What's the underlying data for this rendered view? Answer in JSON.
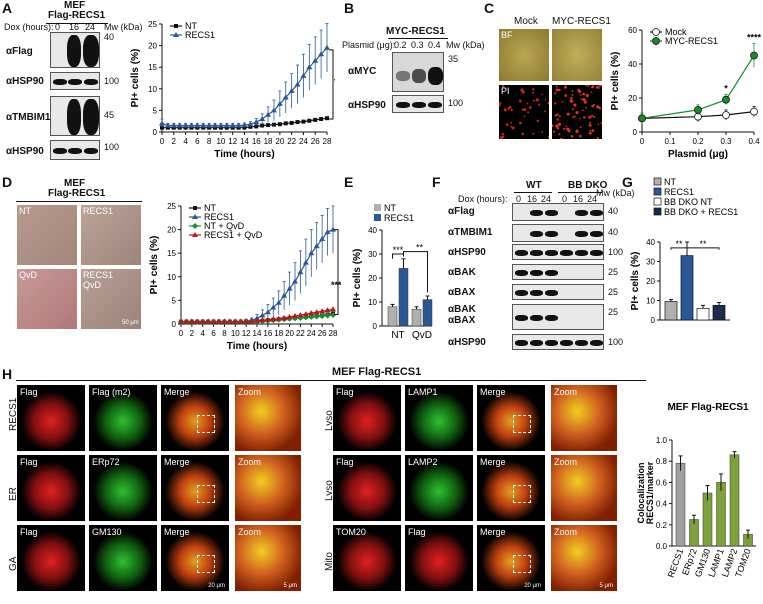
{
  "panel_letters": [
    "A",
    "B",
    "C",
    "D",
    "E",
    "F",
    "G",
    "H"
  ],
  "A": {
    "cell_title_1": "MEF",
    "cell_title_2": "Flag-RECS1",
    "dox_label": "Dox (hours):",
    "dox_times": [
      "0",
      "16",
      "24"
    ],
    "mw_label": "Mw (kDa)",
    "rows": [
      {
        "label": "αFlag",
        "mw": "40"
      },
      {
        "label": "αHSP90",
        "mw": "100"
      },
      {
        "label": "αTMBIM1",
        "mw": "45"
      },
      {
        "label": "αHSP90",
        "mw": "100"
      }
    ]
  },
  "B": {
    "title": "MYC-RECS1",
    "plasmid_label": "Plasmid (μg):",
    "plasmid_values": [
      "0.2",
      "0.3",
      "0.4"
    ],
    "mw_label": "Mw (kDa)",
    "rows": [
      {
        "label": "αMYC",
        "mw": "35"
      },
      {
        "label": "αHSP90",
        "mw": "100"
      }
    ]
  },
  "C": {
    "col_labels": [
      "Mock",
      "MYC-RECS1"
    ],
    "row_labels": [
      "BF",
      "PI"
    ]
  },
  "D": {
    "cell_title_1": "MEF",
    "cell_title_2": "Flag-RECS1",
    "tiles": [
      "NT",
      "RECS1",
      "QvD",
      "RECS1\nQvD"
    ],
    "scale": "50 μm"
  },
  "F": {
    "groups": [
      "WT",
      "BB DKO"
    ],
    "dox_label": "Dox (hours):",
    "dox_times": [
      "0",
      "16",
      "24",
      "0",
      "16",
      "24"
    ],
    "mw_label": "Mw (kDa)",
    "rows": [
      {
        "label": "αFlag",
        "mw": "40"
      },
      {
        "label": "αTMBIM1",
        "mw": "40"
      },
      {
        "label": "αHSP90",
        "mw": "100"
      },
      {
        "label": "αBAK",
        "mw": "25"
      },
      {
        "label": "αBAX",
        "mw": "25"
      },
      {
        "label": "αBAK\nαBAX",
        "mw": "25"
      },
      {
        "label": "αHSP90",
        "mw": "100"
      }
    ]
  },
  "H": {
    "title": "MEF Flag-RECS1",
    "left_rows": [
      {
        "side": "RECS1",
        "labels": [
          "Flag",
          "Flag (m2)",
          "Merge",
          "Zoom"
        ]
      },
      {
        "side": "ER",
        "labels": [
          "Flag",
          "ERp72",
          "Merge",
          "Zoom"
        ]
      },
      {
        "side": "GA",
        "labels": [
          "Flag",
          "GM130",
          "Merge",
          "Zoom"
        ]
      }
    ],
    "right_rows": [
      {
        "side": "Lyso",
        "labels": [
          "Flag",
          "LAMP1",
          "Merge",
          "Zoom"
        ]
      },
      {
        "side": "Lyso",
        "labels": [
          "Flag",
          "LAMP2",
          "Merge",
          "Zoom"
        ]
      },
      {
        "side": "Mito",
        "labels": [
          "TOM20",
          "Flag",
          "Merge",
          "Zoom"
        ]
      }
    ],
    "scale_20": "20 μm",
    "scale_5": "5 μm"
  },
  "chart_data": [
    {
      "panel": "A",
      "type": "line",
      "xlabel": "Time (hours)",
      "ylabel": "PI+ cells (%)",
      "xlim": [
        0,
        28
      ],
      "ylim": [
        0,
        25
      ],
      "xticks": [
        0,
        2,
        4,
        6,
        8,
        10,
        12,
        14,
        16,
        18,
        20,
        22,
        24,
        26,
        28
      ],
      "yticks": [
        0,
        5,
        10,
        15,
        20,
        25
      ],
      "x": [
        0,
        1,
        2,
        3,
        4,
        5,
        6,
        7,
        8,
        9,
        10,
        11,
        12,
        13,
        14,
        15,
        16,
        17,
        18,
        19,
        20,
        21,
        22,
        23,
        24,
        25,
        26,
        27,
        28
      ],
      "series": [
        {
          "name": "NT",
          "color": "#111111",
          "values": [
            1,
            1,
            1,
            1,
            1,
            1,
            1,
            1,
            1,
            1,
            1,
            1,
            1,
            1,
            1,
            1.2,
            1.3,
            1.5,
            1.6,
            1.7,
            1.8,
            2,
            2.1,
            2.3,
            2.4,
            2.6,
            2.8,
            3,
            3.2
          ]
        },
        {
          "name": "RECS1",
          "color": "#2b5797",
          "values": [
            2,
            1.5,
            1.5,
            1.5,
            1.5,
            1.5,
            1.5,
            1.5,
            1.5,
            1.5,
            1.5,
            1.5,
            1.5,
            1.5,
            1.6,
            1.8,
            2.3,
            3,
            4,
            5,
            6.5,
            8,
            9.5,
            11,
            13,
            15,
            16.5,
            18,
            19.5
          ],
          "err": [
            1,
            0.5,
            0.5,
            0.5,
            0.5,
            0.5,
            0.5,
            0.5,
            0.5,
            0.5,
            0.5,
            0.5,
            0.5,
            0.5,
            0.5,
            0.6,
            0.8,
            1.2,
            1.8,
            2.4,
            3,
            3.6,
            4,
            4.5,
            5,
            5.3,
            5.5,
            5.6,
            5.6
          ]
        }
      ],
      "annotation": "****",
      "legend": "top-left"
    },
    {
      "panel": "C",
      "type": "line",
      "xlabel": "Plasmid (μg)",
      "ylabel": "PI+ cells (%)",
      "xlim": [
        0,
        0.4
      ],
      "ylim": [
        0,
        60
      ],
      "xticks": [
        0,
        0.1,
        0.2,
        0.3,
        0.4
      ],
      "yticks": [
        0,
        20,
        40,
        60
      ],
      "x": [
        0,
        0.2,
        0.3,
        0.4
      ],
      "series": [
        {
          "name": "Mock",
          "color": "#ffffff",
          "values": [
            8,
            9,
            10,
            12
          ],
          "err": [
            3,
            3,
            3,
            3
          ]
        },
        {
          "name": "MYC-RECS1",
          "color": "#1a8c2e",
          "values": [
            8,
            13,
            19,
            45
          ],
          "err": [
            3,
            3,
            3,
            7
          ]
        }
      ],
      "annotations": [
        {
          "x": 0.3,
          "text": "*"
        },
        {
          "x": 0.4,
          "text": "****"
        }
      ],
      "legend": "top-left"
    },
    {
      "panel": "D",
      "type": "line",
      "xlabel": "Time (hours)",
      "ylabel": "PI+ cells (%)",
      "xlim": [
        0,
        28
      ],
      "ylim": [
        0,
        25
      ],
      "xticks": [
        0,
        2,
        4,
        6,
        8,
        10,
        12,
        14,
        16,
        18,
        20,
        22,
        24,
        26,
        28
      ],
      "yticks": [
        0,
        5,
        10,
        15,
        20,
        25
      ],
      "x": [
        0,
        1,
        2,
        3,
        4,
        5,
        6,
        7,
        8,
        9,
        10,
        11,
        12,
        13,
        14,
        15,
        16,
        17,
        18,
        19,
        20,
        21,
        22,
        23,
        24,
        25,
        26,
        27,
        28
      ],
      "series": [
        {
          "name": "NT",
          "color": "#111111",
          "values": [
            0.5,
            0.5,
            0.5,
            0.5,
            0.5,
            0.5,
            0.5,
            0.5,
            0.5,
            0.5,
            0.5,
            0.5,
            0.5,
            0.5,
            0.6,
            0.7,
            0.8,
            0.9,
            1,
            1.1,
            1.2,
            1.3,
            1.4,
            1.5,
            1.6,
            1.7,
            1.8,
            2,
            2.2
          ]
        },
        {
          "name": "RECS1",
          "color": "#2b5797",
          "values": [
            0.5,
            0.5,
            0.5,
            0.5,
            0.5,
            0.5,
            0.5,
            0.5,
            0.5,
            0.5,
            0.5,
            0.5,
            0.6,
            0.8,
            1.2,
            1.8,
            2.5,
            3.5,
            4.5,
            6,
            7.5,
            9,
            11,
            13,
            15,
            16.5,
            18,
            19.5,
            20
          ],
          "err": [
            0.3,
            0.3,
            0.3,
            0.3,
            0.3,
            0.3,
            0.3,
            0.3,
            0.3,
            0.3,
            0.3,
            0.3,
            0.4,
            0.5,
            0.8,
            1.2,
            1.6,
            2,
            2.5,
            3,
            3.5,
            4,
            4.5,
            5,
            5,
            5,
            5,
            5,
            5
          ]
        },
        {
          "name": "NT + QvD",
          "color": "#1a8c2e",
          "values": [
            0.5,
            0.5,
            0.5,
            0.5,
            0.5,
            0.5,
            0.5,
            0.5,
            0.5,
            0.5,
            0.5,
            0.5,
            0.5,
            0.5,
            0.5,
            0.6,
            0.7,
            0.8,
            0.9,
            1,
            1.1,
            1.2,
            1.3,
            1.4,
            1.5,
            1.6,
            1.7,
            1.8,
            1.9
          ]
        },
        {
          "name": "RECS1 + QvD",
          "color": "#b01c1c",
          "values": [
            0.5,
            0.5,
            0.5,
            0.5,
            0.5,
            0.5,
            0.5,
            0.5,
            0.5,
            0.5,
            0.5,
            0.5,
            0.5,
            0.6,
            0.7,
            0.8,
            0.9,
            1,
            1.1,
            1.3,
            1.5,
            1.7,
            1.9,
            2.1,
            2.3,
            2.5,
            2.7,
            2.9,
            3.1
          ]
        }
      ],
      "annotation": "****",
      "legend": "top-left"
    },
    {
      "panel": "E",
      "type": "bar",
      "categories": [
        "NT",
        "QvD"
      ],
      "ylabel": "PI+ cells (%)",
      "ylim": [
        0,
        40
      ],
      "yticks": [
        0,
        10,
        20,
        30,
        40
      ],
      "series": [
        {
          "name": "NT",
          "color": "#b0b0b0",
          "values": [
            8,
            7
          ],
          "err": [
            1,
            1
          ]
        },
        {
          "name": "RECS1",
          "color": "#2b5797",
          "values": [
            24,
            11
          ],
          "err": [
            4,
            1.5
          ]
        }
      ],
      "annotations": [
        "***",
        "**"
      ],
      "legend": "top-left"
    },
    {
      "panel": "G",
      "type": "bar",
      "categories": [
        "NT",
        "RECS1",
        "BB DKO NT",
        "BB DKO + RECS1"
      ],
      "ylabel": "PI+ cells (%)",
      "ylim": [
        0,
        40
      ],
      "yticks": [
        0,
        10,
        20,
        30,
        40
      ],
      "series": [
        {
          "name": "values",
          "values": [
            9.5,
            33,
            6,
            7.5
          ],
          "err": [
            1,
            7,
            1.5,
            1.5
          ],
          "colors": [
            "#b0b0b0",
            "#2b5797",
            "#ffffff",
            "#1a2c4e"
          ]
        }
      ],
      "annotations": [
        "**",
        "**"
      ],
      "legend": "top-left"
    },
    {
      "panel": "H",
      "type": "bar",
      "title": "MEF Flag-RECS1",
      "ylabel": "Colocalization RECS1/marker",
      "categories": [
        "RECS1",
        "ERp72",
        "GM130",
        "LAMP1",
        "LAMP2",
        "TOM20"
      ],
      "ylim": [
        0,
        1.0
      ],
      "yticks": [
        0,
        0.2,
        0.4,
        0.6,
        0.8,
        1.0
      ],
      "series": [
        {
          "name": "values",
          "values": [
            0.78,
            0.25,
            0.5,
            0.6,
            0.86,
            0.11
          ],
          "err": [
            0.07,
            0.04,
            0.07,
            0.08,
            0.03,
            0.04
          ],
          "colors": [
            "#a0a0a0",
            "#7da23a",
            "#7da23a",
            "#7da23a",
            "#7da23a",
            "#7da23a"
          ]
        }
      ]
    }
  ]
}
